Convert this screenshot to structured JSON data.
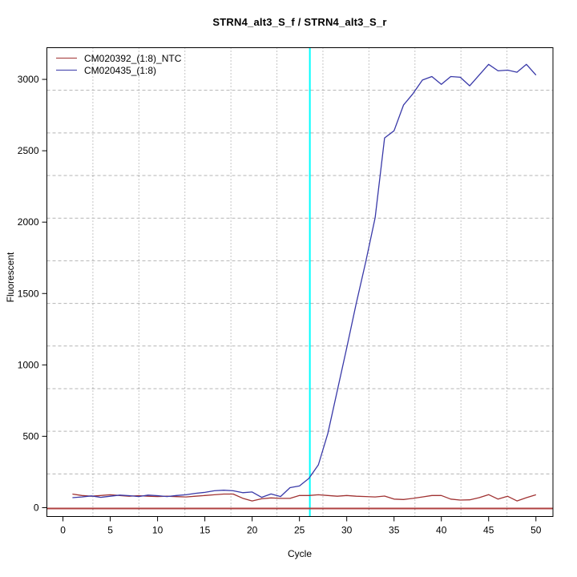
{
  "title": "STRN4_alt3_S_f / STRN4_alt3_S_r",
  "axes": {
    "xlabel": "Cycle",
    "ylabel": "Fluorescent"
  },
  "legend": [
    {
      "label": "CM020392_(1:8)_NTC",
      "color": "#A03232"
    },
    {
      "label": "CM020435_(1:8)",
      "color": "#3939A8"
    }
  ],
  "colors": {
    "ntc_line": "#A03232",
    "sample_line": "#3939A8",
    "ct_marker": "#00FFFF",
    "threshold": "#AF4040",
    "grid_h": "#B4B4B4",
    "grid_v": "#8C8C8C",
    "frame": "#000000"
  },
  "chart_data": {
    "type": "line",
    "title": "STRN4_alt3_S_f / STRN4_alt3_S_r",
    "xlabel": "Cycle",
    "ylabel": "Fluorescent",
    "x_ticks": [
      0,
      5,
      10,
      15,
      20,
      25,
      30,
      35,
      40,
      45,
      50
    ],
    "y_ticks": [
      0,
      500,
      1000,
      1500,
      2000,
      2500,
      3000
    ],
    "xlim": [
      -1.7,
      51.8
    ],
    "ylim": [
      -62,
      3222
    ],
    "grid": {
      "style": "dotted",
      "divisions_x": 11,
      "divisions_y": 11
    },
    "legend_position": "top-left",
    "x": [
      1,
      2,
      3,
      4,
      5,
      6,
      7,
      8,
      9,
      10,
      11,
      12,
      13,
      14,
      15,
      16,
      17,
      18,
      19,
      20,
      21,
      22,
      23,
      24,
      25,
      26,
      27,
      28,
      29,
      30,
      31,
      32,
      33,
      34,
      35,
      36,
      37,
      38,
      39,
      40,
      41,
      42,
      43,
      44,
      45,
      46,
      47,
      48,
      49,
      50
    ],
    "series": [
      {
        "name": "CM020392_(1:8)_NTC",
        "color": "#A03232",
        "values": [
          95,
          85,
          80,
          85,
          90,
          85,
          80,
          84,
          80,
          78,
          80,
          77,
          75,
          80,
          85,
          90,
          95,
          95,
          66,
          47,
          62,
          68,
          65,
          65,
          85,
          85,
          90,
          85,
          80,
          85,
          80,
          78,
          75,
          81,
          60,
          57,
          65,
          75,
          85,
          85,
          60,
          53,
          55,
          70,
          91,
          60,
          80,
          47,
          70,
          90
        ]
      },
      {
        "name": "CM020435_(1:8)",
        "color": "#3939A8",
        "values": [
          70,
          75,
          82,
          72,
          80,
          88,
          84,
          78,
          88,
          84,
          78,
          85,
          90,
          100,
          107,
          118,
          122,
          118,
          105,
          110,
          72,
          96,
          78,
          140,
          152,
          205,
          300,
          520,
          820,
          1120,
          1430,
          1720,
          2030,
          2590,
          2640,
          2820,
          2900,
          2995,
          3020,
          2965,
          3020,
          3015,
          2955,
          3030,
          3105,
          3060,
          3065,
          3050,
          3105,
          3030
        ]
      }
    ],
    "ct_vertical_line": {
      "x": 26.1,
      "color": "#00FFFF"
    },
    "threshold_horizontal_line": {
      "y": 0,
      "color": "#AF4040"
    }
  }
}
